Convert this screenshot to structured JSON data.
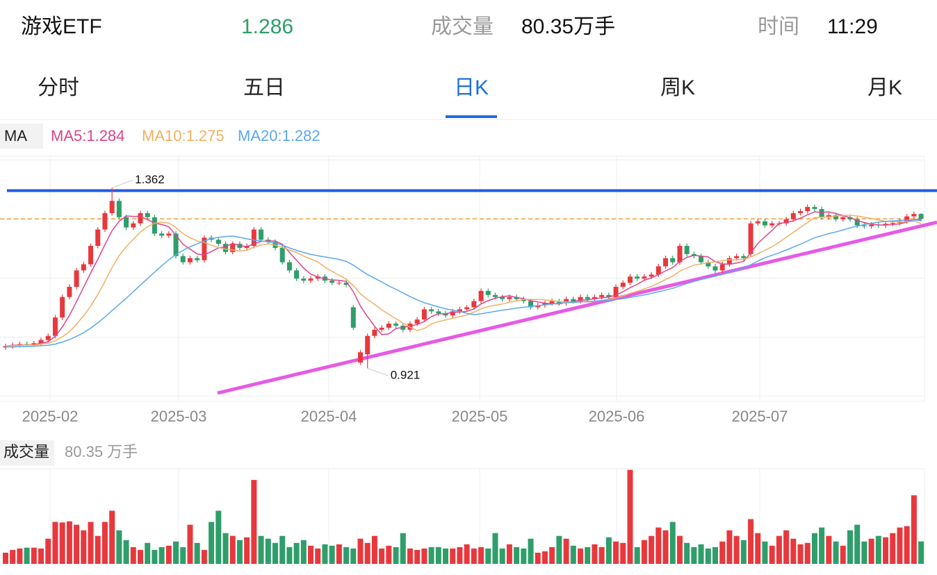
{
  "header": {
    "name": "游戏ETF",
    "price": 1.286,
    "volume_label": "成交量",
    "volume": "80.35万手",
    "time_label": "时间",
    "time": "11:29"
  },
  "tabs": [
    "分时",
    "五日",
    "日K",
    "周K",
    "月K"
  ],
  "active_tab": 2,
  "chart_data": {
    "type": "candlestick",
    "ma_legend": {
      "label": "MA",
      "items": [
        "MA5:1.284",
        "MA10:1.275",
        "MA20:1.282"
      ]
    },
    "ylim": [
      0.84,
      1.439
    ],
    "ygrid": [
      1.43,
      1.286,
      1.141,
      0.997,
      0.853
    ],
    "resistance": 1.355,
    "resistance_color": "#1f5ce0",
    "price_line_color": "#f0a040",
    "up_color": "#e8383d",
    "down_color": "#2e9e6a",
    "max_label": 1.362,
    "min_label": 0.921,
    "x_labels": [
      "2025-02",
      "2025-03",
      "2025-04",
      "2025-05",
      "2025-06",
      "2025-07"
    ],
    "ohlc": [
      [
        0.972,
        0.981,
        0.966,
        0.975
      ],
      [
        0.975,
        0.984,
        0.969,
        0.978
      ],
      [
        0.978,
        0.986,
        0.972,
        0.98
      ],
      [
        0.98,
        0.986,
        0.973,
        0.979
      ],
      [
        0.979,
        0.988,
        0.973,
        0.982
      ],
      [
        0.982,
        0.996,
        0.976,
        0.99
      ],
      [
        0.99,
        1.006,
        0.984,
        1.0
      ],
      [
        1.0,
        1.051,
        0.994,
        1.045
      ],
      [
        1.045,
        1.101,
        1.039,
        1.095
      ],
      [
        1.095,
        1.126,
        1.089,
        1.12
      ],
      [
        1.12,
        1.166,
        1.114,
        1.16
      ],
      [
        1.16,
        1.181,
        1.154,
        1.175
      ],
      [
        1.175,
        1.226,
        1.169,
        1.22
      ],
      [
        1.22,
        1.266,
        1.214,
        1.26
      ],
      [
        1.26,
        1.306,
        1.254,
        1.3
      ],
      [
        1.3,
        1.362,
        1.294,
        1.33
      ],
      [
        1.33,
        1.336,
        1.284,
        1.29
      ],
      [
        1.29,
        1.296,
        1.259,
        1.265
      ],
      [
        1.265,
        1.281,
        1.259,
        1.275
      ],
      [
        1.275,
        1.306,
        1.269,
        1.3
      ],
      [
        1.3,
        1.306,
        1.284,
        1.29
      ],
      [
        1.29,
        1.296,
        1.244,
        1.25
      ],
      [
        1.25,
        1.256,
        1.239,
        1.245
      ],
      [
        1.245,
        1.256,
        1.239,
        1.25
      ],
      [
        1.25,
        1.256,
        1.189,
        1.195
      ],
      [
        1.195,
        1.201,
        1.174,
        1.18
      ],
      [
        1.18,
        1.196,
        1.174,
        1.19
      ],
      [
        1.19,
        1.196,
        1.179,
        1.185
      ],
      [
        1.185,
        1.246,
        1.179,
        1.24
      ],
      [
        1.24,
        1.246,
        1.229,
        1.235
      ],
      [
        1.235,
        1.241,
        1.219,
        1.225
      ],
      [
        1.225,
        1.231,
        1.199,
        1.205
      ],
      [
        1.205,
        1.231,
        1.199,
        1.225
      ],
      [
        1.225,
        1.231,
        1.209,
        1.215
      ],
      [
        1.215,
        1.226,
        1.209,
        1.22
      ],
      [
        1.22,
        1.266,
        1.214,
        1.26
      ],
      [
        1.26,
        1.266,
        1.229,
        1.235
      ],
      [
        1.235,
        1.241,
        1.224,
        1.23
      ],
      [
        1.23,
        1.236,
        1.209,
        1.215
      ],
      [
        1.215,
        1.221,
        1.174,
        1.18
      ],
      [
        1.18,
        1.186,
        1.154,
        1.16
      ],
      [
        1.16,
        1.166,
        1.134,
        1.14
      ],
      [
        1.14,
        1.146,
        1.129,
        1.135
      ],
      [
        1.135,
        1.146,
        1.129,
        1.14
      ],
      [
        1.14,
        1.151,
        1.134,
        1.145
      ],
      [
        1.145,
        1.151,
        1.129,
        1.135
      ],
      [
        1.135,
        1.141,
        1.124,
        1.13
      ],
      [
        1.13,
        1.136,
        1.124,
        1.13
      ],
      [
        1.13,
        1.136,
        1.119,
        1.125
      ],
      [
        1.07,
        1.076,
        1.014,
        1.02
      ],
      [
        0.935,
        0.966,
        0.929,
        0.96
      ],
      [
        0.955,
        1.006,
        0.921,
        1.0
      ],
      [
        1.0,
        1.021,
        0.994,
        1.015
      ],
      [
        1.015,
        1.026,
        1.009,
        1.02
      ],
      [
        1.02,
        1.036,
        1.014,
        1.03
      ],
      [
        1.03,
        1.036,
        1.019,
        1.025
      ],
      [
        1.025,
        1.031,
        1.009,
        1.015
      ],
      [
        1.015,
        1.036,
        1.009,
        1.03
      ],
      [
        1.03,
        1.046,
        1.024,
        1.04
      ],
      [
        1.04,
        1.071,
        1.034,
        1.065
      ],
      [
        1.065,
        1.071,
        1.054,
        1.06
      ],
      [
        1.06,
        1.066,
        1.049,
        1.055
      ],
      [
        1.055,
        1.061,
        1.044,
        1.05
      ],
      [
        1.05,
        1.066,
        1.044,
        1.06
      ],
      [
        1.06,
        1.071,
        1.054,
        1.065
      ],
      [
        1.065,
        1.076,
        1.059,
        1.07
      ],
      [
        1.07,
        1.091,
        1.064,
        1.085
      ],
      [
        1.085,
        1.116,
        1.079,
        1.11
      ],
      [
        1.11,
        1.116,
        1.094,
        1.1
      ],
      [
        1.1,
        1.106,
        1.089,
        1.095
      ],
      [
        1.095,
        1.101,
        1.084,
        1.09
      ],
      [
        1.09,
        1.101,
        1.084,
        1.095
      ],
      [
        1.095,
        1.101,
        1.084,
        1.09
      ],
      [
        1.09,
        1.096,
        1.079,
        1.085
      ],
      [
        1.085,
        1.091,
        1.064,
        1.07
      ],
      [
        1.07,
        1.081,
        1.064,
        1.075
      ],
      [
        1.075,
        1.086,
        1.069,
        1.08
      ],
      [
        1.08,
        1.091,
        1.074,
        1.085
      ],
      [
        1.085,
        1.091,
        1.074,
        1.08
      ],
      [
        1.08,
        1.096,
        1.074,
        1.09
      ],
      [
        1.09,
        1.096,
        1.079,
        1.085
      ],
      [
        1.085,
        1.101,
        1.079,
        1.095
      ],
      [
        1.095,
        1.101,
        1.084,
        1.09
      ],
      [
        1.09,
        1.101,
        1.084,
        1.095
      ],
      [
        1.095,
        1.106,
        1.089,
        1.1
      ],
      [
        1.1,
        1.106,
        1.089,
        1.095
      ],
      [
        1.095,
        1.126,
        1.089,
        1.12
      ],
      [
        1.12,
        1.136,
        1.114,
        1.13
      ],
      [
        1.13,
        1.151,
        1.124,
        1.145
      ],
      [
        1.145,
        1.151,
        1.134,
        1.14
      ],
      [
        1.14,
        1.151,
        1.134,
        1.145
      ],
      [
        1.145,
        1.156,
        1.139,
        1.15
      ],
      [
        1.15,
        1.176,
        1.144,
        1.17
      ],
      [
        1.17,
        1.196,
        1.164,
        1.19
      ],
      [
        1.19,
        1.196,
        1.174,
        1.18
      ],
      [
        1.18,
        1.226,
        1.174,
        1.22
      ],
      [
        1.22,
        1.226,
        1.194,
        1.2
      ],
      [
        1.2,
        1.206,
        1.189,
        1.195
      ],
      [
        1.195,
        1.201,
        1.174,
        1.18
      ],
      [
        1.18,
        1.186,
        1.164,
        1.17
      ],
      [
        1.17,
        1.176,
        1.154,
        1.16
      ],
      [
        1.16,
        1.181,
        1.154,
        1.175
      ],
      [
        1.175,
        1.196,
        1.169,
        1.19
      ],
      [
        1.19,
        1.201,
        1.184,
        1.195
      ],
      [
        1.195,
        1.201,
        1.184,
        1.19
      ],
      [
        1.2,
        1.281,
        1.194,
        1.275
      ],
      [
        1.275,
        1.286,
        1.269,
        1.28
      ],
      [
        1.28,
        1.286,
        1.264,
        1.27
      ],
      [
        1.27,
        1.281,
        1.264,
        1.275
      ],
      [
        1.275,
        1.281,
        1.269,
        1.275
      ],
      [
        1.275,
        1.291,
        1.269,
        1.285
      ],
      [
        1.285,
        1.306,
        1.279,
        1.3
      ],
      [
        1.3,
        1.311,
        1.294,
        1.305
      ],
      [
        1.305,
        1.321,
        1.299,
        1.315
      ],
      [
        1.315,
        1.321,
        1.304,
        1.31
      ],
      [
        1.31,
        1.316,
        1.284,
        1.29
      ],
      [
        1.29,
        1.301,
        1.284,
        1.295
      ],
      [
        1.295,
        1.301,
        1.279,
        1.285
      ],
      [
        1.285,
        1.296,
        1.279,
        1.29
      ],
      [
        1.29,
        1.296,
        1.279,
        1.285
      ],
      [
        1.285,
        1.291,
        1.264,
        1.27
      ],
      [
        1.27,
        1.276,
        1.262,
        1.268
      ],
      [
        1.268,
        1.278,
        1.262,
        1.272
      ],
      [
        1.272,
        1.278,
        1.264,
        1.27
      ],
      [
        1.27,
        1.28,
        1.264,
        1.274
      ],
      [
        1.274,
        1.282,
        1.268,
        1.276
      ],
      [
        1.276,
        1.286,
        1.27,
        1.28
      ],
      [
        1.28,
        1.298,
        1.274,
        1.292
      ],
      [
        1.292,
        1.304,
        1.286,
        1.298
      ],
      [
        1.298,
        1.3,
        1.28,
        1.286
      ]
    ],
    "ma": [
      {
        "color": "#e0438a",
        "values": [
          0.975,
          0.977,
          0.978,
          0.978,
          0.979,
          0.982,
          0.986,
          0.999,
          1.022,
          1.05,
          1.084,
          1.119,
          1.154,
          1.187,
          1.223,
          1.257,
          1.28,
          1.293,
          1.292,
          1.292,
          1.284,
          1.276,
          1.272,
          1.267,
          1.246,
          1.224,
          1.212,
          1.2,
          1.198,
          1.206,
          1.215,
          1.218,
          1.226,
          1.221,
          1.218,
          1.225,
          1.231,
          1.232,
          1.232,
          1.224,
          1.204,
          1.185,
          1.166,
          1.151,
          1.144,
          1.139,
          1.137,
          1.136,
          1.133,
          1.108,
          1.073,
          1.047,
          1.024,
          1.003,
          1.005,
          1.018,
          1.021,
          1.024,
          1.028,
          1.035,
          1.047,
          1.054,
          1.054,
          1.058,
          1.058,
          1.06,
          1.066,
          1.078,
          1.086,
          1.092,
          1.096,
          1.098,
          1.094,
          1.091,
          1.086,
          1.083,
          1.08,
          1.079,
          1.078,
          1.082,
          1.084,
          1.087,
          1.088,
          1.091,
          1.093,
          1.095,
          1.1,
          1.108,
          1.118,
          1.126,
          1.136,
          1.142,
          1.15,
          1.159,
          1.167,
          1.182,
          1.192,
          1.197,
          1.195,
          1.193,
          1.181,
          1.176,
          1.175,
          1.178,
          1.182,
          1.203,
          1.226,
          1.242,
          1.258,
          1.275,
          1.277,
          1.281,
          1.288,
          1.296,
          1.303,
          1.302,
          1.303,
          1.299,
          1.294,
          1.289,
          1.282,
          1.277,
          1.273,
          1.271,
          1.271,
          1.272,
          1.274,
          1.278,
          1.284,
          1.284
        ]
      },
      {
        "color": "#f0b060",
        "values": [
          0.975,
          0.976,
          0.977,
          0.978,
          0.978,
          0.98,
          0.982,
          0.988,
          0.998,
          1.01,
          1.029,
          1.049,
          1.073,
          1.101,
          1.133,
          1.167,
          1.196,
          1.218,
          1.236,
          1.254,
          1.267,
          1.275,
          1.278,
          1.276,
          1.265,
          1.25,
          1.24,
          1.232,
          1.228,
          1.222,
          1.216,
          1.212,
          1.21,
          1.207,
          1.209,
          1.217,
          1.222,
          1.225,
          1.222,
          1.216,
          1.21,
          1.204,
          1.195,
          1.188,
          1.181,
          1.168,
          1.158,
          1.148,
          1.139,
          1.123,
          1.103,
          1.089,
          1.077,
          1.064,
          1.053,
          1.042,
          1.031,
          1.021,
          1.013,
          1.018,
          1.029,
          1.035,
          1.039,
          1.043,
          1.047,
          1.051,
          1.058,
          1.066,
          1.072,
          1.075,
          1.078,
          1.082,
          1.086,
          1.089,
          1.089,
          1.089,
          1.088,
          1.086,
          1.084,
          1.083,
          1.082,
          1.083,
          1.083,
          1.084,
          1.087,
          1.089,
          1.093,
          1.098,
          1.104,
          1.109,
          1.115,
          1.121,
          1.129,
          1.138,
          1.146,
          1.158,
          1.166,
          1.173,
          1.176,
          1.179,
          1.181,
          1.184,
          1.186,
          1.186,
          1.187,
          1.193,
          1.201,
          1.209,
          1.218,
          1.229,
          1.241,
          1.253,
          1.265,
          1.277,
          1.289,
          1.29,
          1.291,
          1.293,
          1.294,
          1.295,
          1.293,
          1.29,
          1.287,
          1.283,
          1.28,
          1.279,
          1.278,
          1.279,
          1.28,
          1.275
        ]
      },
      {
        "color": "#5aa8f0",
        "values": [
          0.973,
          0.973,
          0.974,
          0.974,
          0.975,
          0.976,
          0.977,
          0.98,
          0.985,
          0.991,
          0.999,
          1.008,
          1.019,
          1.032,
          1.046,
          1.062,
          1.077,
          1.092,
          1.108,
          1.124,
          1.14,
          1.156,
          1.171,
          1.186,
          1.199,
          1.209,
          1.218,
          1.225,
          1.232,
          1.238,
          1.241,
          1.243,
          1.244,
          1.241,
          1.237,
          1.234,
          1.232,
          1.23,
          1.227,
          1.222,
          1.215,
          1.209,
          1.204,
          1.199,
          1.196,
          1.193,
          1.19,
          1.187,
          1.182,
          1.173,
          1.161,
          1.15,
          1.141,
          1.132,
          1.122,
          1.114,
          1.105,
          1.096,
          1.088,
          1.081,
          1.076,
          1.071,
          1.066,
          1.063,
          1.06,
          1.055,
          1.052,
          1.054,
          1.057,
          1.06,
          1.063,
          1.065,
          1.068,
          1.07,
          1.072,
          1.074,
          1.076,
          1.078,
          1.08,
          1.081,
          1.082,
          1.083,
          1.084,
          1.085,
          1.086,
          1.087,
          1.089,
          1.091,
          1.094,
          1.097,
          1.1,
          1.104,
          1.108,
          1.112,
          1.116,
          1.122,
          1.128,
          1.133,
          1.138,
          1.142,
          1.146,
          1.151,
          1.156,
          1.161,
          1.166,
          1.174,
          1.183,
          1.191,
          1.197,
          1.203,
          1.21,
          1.217,
          1.224,
          1.232,
          1.24,
          1.245,
          1.25,
          1.254,
          1.259,
          1.264,
          1.268,
          1.272,
          1.275,
          1.278,
          1.28,
          1.281,
          1.282,
          1.283,
          1.283,
          1.282
        ]
      }
    ],
    "volume": {
      "label": "成交量",
      "value_label": "80.35 万手",
      "ylim": [
        0,
        340
      ],
      "values": [
        40,
        50,
        55,
        58,
        58,
        55,
        90,
        150,
        148,
        152,
        140,
        120,
        150,
        100,
        150,
        190,
        120,
        85,
        60,
        50,
        75,
        50,
        60,
        65,
        80,
        60,
        140,
        75,
        50,
        150,
        190,
        110,
        100,
        85,
        95,
        300,
        100,
        90,
        75,
        100,
        60,
        75,
        85,
        65,
        55,
        70,
        65,
        70,
        60,
        55,
        90,
        75,
        100,
        55,
        65,
        60,
        110,
        55,
        50,
        55,
        60,
        60,
        55,
        55,
        60,
        70,
        55,
        60,
        55,
        110,
        55,
        70,
        60,
        55,
        90,
        40,
        45,
        60,
        100,
        90,
        65,
        55,
        60,
        70,
        60,
        95,
        80,
        75,
        336,
        60,
        85,
        100,
        130,
        120,
        150,
        100,
        75,
        60,
        70,
        55,
        60,
        80,
        120,
        100,
        85,
        160,
        110,
        80,
        65,
        100,
        120,
        90,
        70,
        75,
        110,
        130,
        100,
        80,
        65,
        120,
        140,
        80,
        90,
        100,
        95,
        110,
        130,
        135,
        245,
        80.35
      ]
    }
  }
}
